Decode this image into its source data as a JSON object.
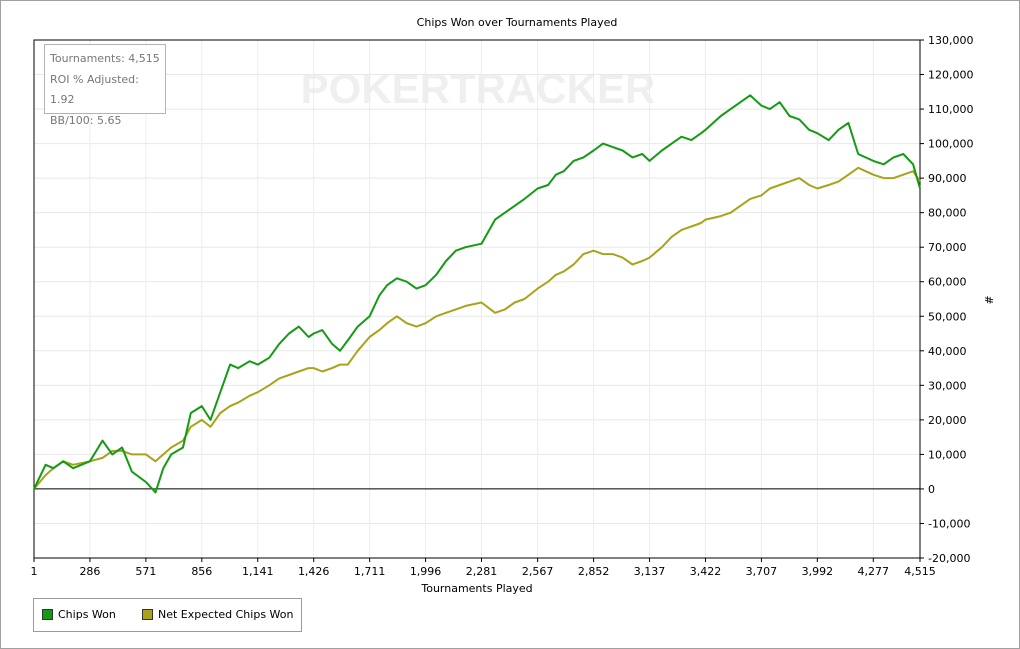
{
  "chart_data": {
    "type": "line",
    "title": "Chips Won over Tournaments Played",
    "xlabel": "Tournaments Played",
    "ylabel": "#",
    "xlim": [
      1,
      4515
    ],
    "ylim": [
      -20000,
      130000
    ],
    "x_ticks": [
      "1",
      "286",
      "571",
      "856",
      "1,141",
      "1,426",
      "1,711",
      "1,996",
      "2,281",
      "2,567",
      "2,852",
      "3,137",
      "3,422",
      "3,707",
      "3,992",
      "4,277",
      "4,515"
    ],
    "y_ticks": [
      "130,000",
      "120,000",
      "110,000",
      "100,000",
      "90,000",
      "80,000",
      "70,000",
      "60,000",
      "50,000",
      "40,000",
      "30,000",
      "20,000",
      "10,000",
      "0",
      "-10,000",
      "-20,000"
    ],
    "grid": true,
    "legend_position": "bottom-left",
    "watermark": "POKERTRACKER",
    "stats": [
      "Tournaments: 4,515",
      "ROI % Adjusted: 1.92",
      "BB/100: 5.65"
    ],
    "series": [
      {
        "name": "Chips Won",
        "color": "#139b13",
        "x": [
          1,
          60,
          100,
          150,
          200,
          286,
          350,
          400,
          450,
          500,
          571,
          620,
          660,
          700,
          760,
          800,
          856,
          900,
          950,
          1000,
          1041,
          1100,
          1141,
          1200,
          1250,
          1300,
          1350,
          1400,
          1426,
          1470,
          1520,
          1560,
          1600,
          1650,
          1711,
          1760,
          1800,
          1850,
          1900,
          1950,
          1996,
          2050,
          2100,
          2150,
          2200,
          2281,
          2350,
          2400,
          2450,
          2500,
          2567,
          2620,
          2660,
          2700,
          2750,
          2800,
          2852,
          2900,
          2950,
          3000,
          3050,
          3100,
          3137,
          3200,
          3250,
          3300,
          3350,
          3400,
          3422,
          3500,
          3550,
          3600,
          3650,
          3707,
          3750,
          3800,
          3850,
          3900,
          3950,
          3992,
          4050,
          4100,
          4150,
          4200,
          4277,
          4330,
          4380,
          4430,
          4480,
          4515
        ],
        "values": [
          0,
          7000,
          6000,
          8000,
          6000,
          8000,
          14000,
          10000,
          12000,
          5000,
          2000,
          -1000,
          6000,
          10000,
          12000,
          22000,
          24000,
          20000,
          28000,
          36000,
          35000,
          37000,
          36000,
          38000,
          42000,
          45000,
          47000,
          44000,
          45000,
          46000,
          42000,
          40000,
          43000,
          47000,
          50000,
          56000,
          59000,
          61000,
          60000,
          58000,
          59000,
          62000,
          66000,
          69000,
          70000,
          71000,
          78000,
          80000,
          82000,
          84000,
          87000,
          88000,
          91000,
          92000,
          95000,
          96000,
          98000,
          100000,
          99000,
          98000,
          96000,
          97000,
          95000,
          98000,
          100000,
          102000,
          101000,
          103000,
          104000,
          108000,
          110000,
          112000,
          114000,
          111000,
          110000,
          112000,
          108000,
          107000,
          104000,
          103000,
          101000,
          104000,
          106000,
          97000,
          95000,
          94000,
          96000,
          97000,
          94000,
          87000
        ]
      },
      {
        "name": "Net Expected Chips Won",
        "color": "#a8a31a",
        "x": [
          1,
          60,
          100,
          150,
          200,
          286,
          350,
          400,
          450,
          500,
          571,
          620,
          660,
          700,
          760,
          800,
          856,
          900,
          950,
          1000,
          1041,
          1100,
          1141,
          1200,
          1250,
          1300,
          1350,
          1400,
          1426,
          1470,
          1520,
          1560,
          1600,
          1650,
          1711,
          1760,
          1800,
          1850,
          1900,
          1950,
          1996,
          2050,
          2100,
          2150,
          2200,
          2281,
          2350,
          2400,
          2450,
          2500,
          2567,
          2620,
          2660,
          2700,
          2750,
          2800,
          2852,
          2900,
          2950,
          3000,
          3050,
          3100,
          3137,
          3200,
          3250,
          3300,
          3350,
          3400,
          3422,
          3500,
          3550,
          3600,
          3650,
          3707,
          3750,
          3800,
          3850,
          3900,
          3950,
          3992,
          4050,
          4100,
          4150,
          4200,
          4277,
          4330,
          4380,
          4430,
          4480,
          4515
        ],
        "values": [
          0,
          4000,
          6000,
          8000,
          7000,
          8000,
          9000,
          11000,
          11000,
          10000,
          10000,
          8000,
          10000,
          12000,
          14000,
          18000,
          20000,
          18000,
          22000,
          24000,
          25000,
          27000,
          28000,
          30000,
          32000,
          33000,
          34000,
          35000,
          35000,
          34000,
          35000,
          36000,
          36000,
          40000,
          44000,
          46000,
          48000,
          50000,
          48000,
          47000,
          48000,
          50000,
          51000,
          52000,
          53000,
          54000,
          51000,
          52000,
          54000,
          55000,
          58000,
          60000,
          62000,
          63000,
          65000,
          68000,
          69000,
          68000,
          68000,
          67000,
          65000,
          66000,
          67000,
          70000,
          73000,
          75000,
          76000,
          77000,
          78000,
          79000,
          80000,
          82000,
          84000,
          85000,
          87000,
          88000,
          89000,
          90000,
          88000,
          87000,
          88000,
          89000,
          91000,
          93000,
          91000,
          90000,
          90000,
          91000,
          92000,
          89000
        ]
      }
    ]
  }
}
